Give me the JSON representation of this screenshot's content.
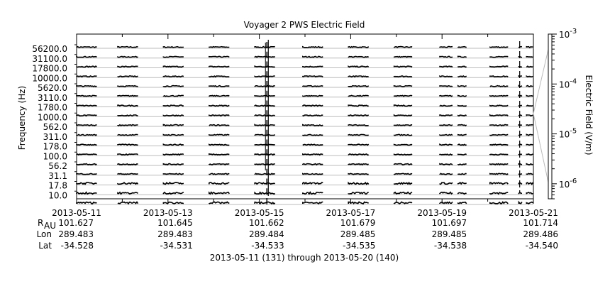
{
  "chart_data": {
    "type": "line",
    "title": "Voyager 2 PWS Electric Field",
    "ylabel": "Frequency (Hz)",
    "right_axis_label": "Electric Field (V/m)",
    "subtitle": "2013-05-11 (131) through 2013-05-20 (140)",
    "x_range": [
      "2013-05-11",
      "2013-05-21"
    ],
    "x_tick_labels": [
      "2013-05-11",
      "2013-05-13",
      "2013-05-15",
      "2013-05-17",
      "2013-05-19",
      "2013-05-21"
    ],
    "channels": [
      "56200.0",
      "31100.0",
      "17800.0",
      "10000.0",
      "5620.0",
      "3110.0",
      "1780.0",
      "1000.0",
      "562.0",
      "311.0",
      "178.0",
      "100.0",
      "56.2",
      "31.1",
      "17.8",
      "10.0"
    ],
    "right_scale": "log",
    "right_ylim": [
      5e-07,
      0.001
    ],
    "right_ticks": [
      {
        "mantissa": "10",
        "exponent": "-3",
        "value": 0.001
      },
      {
        "mantissa": "10",
        "exponent": "-4",
        "value": 0.0001
      },
      {
        "mantissa": "10",
        "exponent": "-5",
        "value": 1e-05
      },
      {
        "mantissa": "10",
        "exponent": "-6",
        "value": 1e-06
      }
    ],
    "data_segments_days": [
      [
        0.0,
        0.45
      ],
      [
        0.9,
        1.35
      ],
      [
        1.9,
        2.35
      ],
      [
        2.9,
        3.35
      ],
      [
        3.9,
        4.35
      ],
      [
        4.95,
        5.4
      ],
      [
        5.95,
        6.4
      ],
      [
        6.95,
        7.35
      ],
      [
        7.95,
        8.25
      ],
      [
        8.35,
        8.55
      ],
      [
        9.05,
        9.45
      ],
      [
        9.68,
        9.75
      ],
      [
        9.85,
        10.0
      ]
    ],
    "burst_day": 4.15,
    "color": "#000000"
  },
  "ephemeris": {
    "rows": [
      {
        "label": "R",
        "sub": "AU",
        "values": [
          "101.627",
          "101.645",
          "101.662",
          "101.679",
          "101.697",
          "101.714"
        ]
      },
      {
        "label": "Lon",
        "sub": "",
        "values": [
          "289.483",
          "289.483",
          "289.484",
          "289.485",
          "289.485",
          "289.486"
        ]
      },
      {
        "label": "Lat",
        "sub": "",
        "values": [
          "-34.528",
          "-34.531",
          "-34.533",
          "-34.535",
          "-34.538",
          "-34.540"
        ]
      }
    ]
  }
}
